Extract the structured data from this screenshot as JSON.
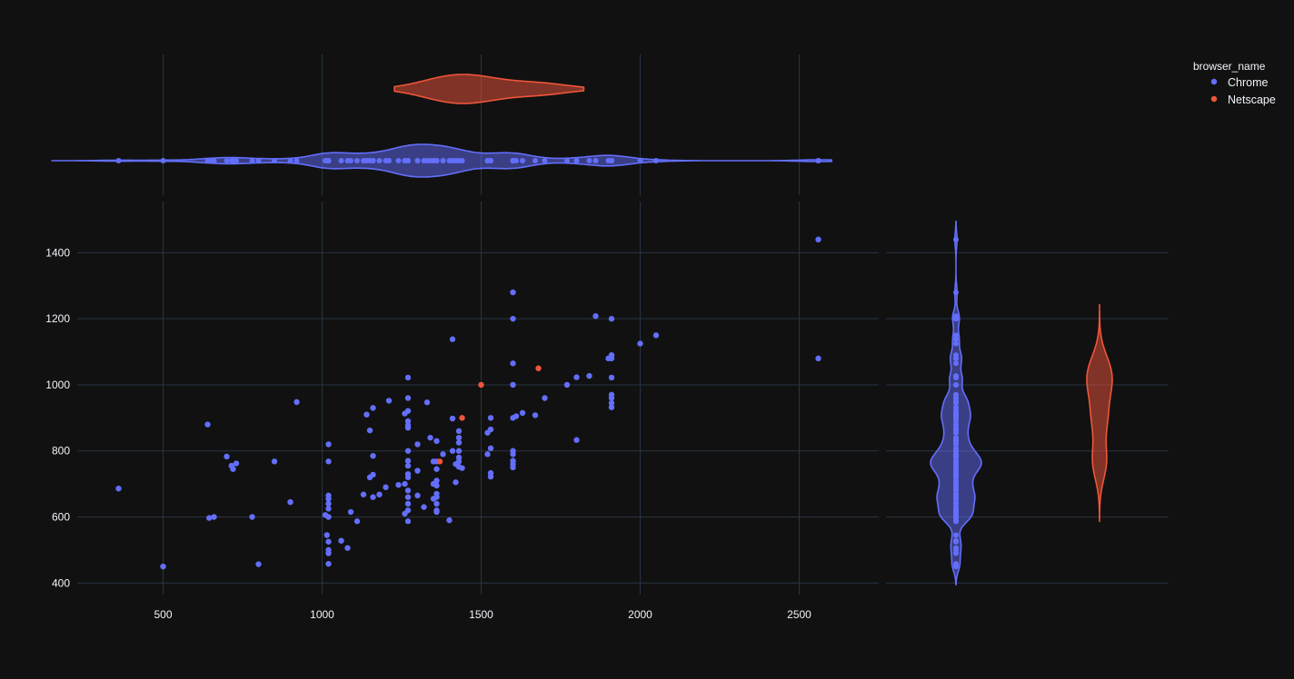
{
  "chart_data": {
    "type": "scatter",
    "legend": {
      "title": "browser_name",
      "placement": "top-right",
      "entries": [
        {
          "name": "Chrome",
          "color": "#636efa"
        },
        {
          "name": "Netscape",
          "color": "#ef553b"
        }
      ]
    },
    "x_axis": {
      "range": [
        230,
        2750
      ],
      "ticks": [
        500,
        1000,
        1500,
        2000,
        2500
      ],
      "grid": true
    },
    "y_axis": {
      "range": [
        365,
        1555
      ],
      "ticks": [
        400,
        600,
        800,
        1000,
        1200,
        1400
      ],
      "grid": true
    },
    "marginals": {
      "x": "violin",
      "y": "violin"
    },
    "series": [
      {
        "name": "Chrome",
        "color": "#636efa",
        "points": [
          [
            360,
            686
          ],
          [
            500,
            450
          ],
          [
            640,
            880
          ],
          [
            645,
            597
          ],
          [
            660,
            600
          ],
          [
            700,
            783
          ],
          [
            715,
            755
          ],
          [
            720,
            745
          ],
          [
            730,
            762
          ],
          [
            780,
            600
          ],
          [
            800,
            457
          ],
          [
            850,
            768
          ],
          [
            900,
            645
          ],
          [
            920,
            948
          ],
          [
            1010,
            606
          ],
          [
            1015,
            545
          ],
          [
            1020,
            820
          ],
          [
            1020,
            768
          ],
          [
            1020,
            665
          ],
          [
            1020,
            655
          ],
          [
            1020,
            640
          ],
          [
            1020,
            625
          ],
          [
            1020,
            600
          ],
          [
            1020,
            525
          ],
          [
            1020,
            500
          ],
          [
            1020,
            490
          ],
          [
            1020,
            458
          ],
          [
            1060,
            528
          ],
          [
            1080,
            506
          ],
          [
            1090,
            615
          ],
          [
            1110,
            587
          ],
          [
            1130,
            668
          ],
          [
            1140,
            910
          ],
          [
            1150,
            862
          ],
          [
            1150,
            720
          ],
          [
            1160,
            930
          ],
          [
            1160,
            785
          ],
          [
            1160,
            728
          ],
          [
            1160,
            660
          ],
          [
            1180,
            668
          ],
          [
            1200,
            690
          ],
          [
            1210,
            952
          ],
          [
            1240,
            697
          ],
          [
            1260,
            913
          ],
          [
            1260,
            700
          ],
          [
            1260,
            610
          ],
          [
            1270,
            1022
          ],
          [
            1270,
            960
          ],
          [
            1270,
            921
          ],
          [
            1270,
            890
          ],
          [
            1270,
            878
          ],
          [
            1270,
            870
          ],
          [
            1270,
            800
          ],
          [
            1270,
            770
          ],
          [
            1270,
            755
          ],
          [
            1270,
            730
          ],
          [
            1270,
            720
          ],
          [
            1270,
            680
          ],
          [
            1270,
            660
          ],
          [
            1270,
            640
          ],
          [
            1270,
            620
          ],
          [
            1270,
            587
          ],
          [
            1300,
            820
          ],
          [
            1300,
            740
          ],
          [
            1300,
            665
          ],
          [
            1320,
            630
          ],
          [
            1330,
            947
          ],
          [
            1340,
            840
          ],
          [
            1350,
            768
          ],
          [
            1350,
            700
          ],
          [
            1350,
            655
          ],
          [
            1360,
            830
          ],
          [
            1360,
            768
          ],
          [
            1360,
            745
          ],
          [
            1360,
            710
          ],
          [
            1360,
            695
          ],
          [
            1360,
            670
          ],
          [
            1360,
            660
          ],
          [
            1360,
            640
          ],
          [
            1360,
            620
          ],
          [
            1360,
            615
          ],
          [
            1380,
            790
          ],
          [
            1400,
            590
          ],
          [
            1410,
            1138
          ],
          [
            1410,
            898
          ],
          [
            1410,
            800
          ],
          [
            1420,
            760
          ],
          [
            1420,
            705
          ],
          [
            1430,
            860
          ],
          [
            1430,
            840
          ],
          [
            1430,
            825
          ],
          [
            1430,
            800
          ],
          [
            1430,
            780
          ],
          [
            1430,
            768
          ],
          [
            1430,
            752
          ],
          [
            1440,
            748
          ],
          [
            1520,
            855
          ],
          [
            1520,
            790
          ],
          [
            1530,
            900
          ],
          [
            1530,
            865
          ],
          [
            1530,
            808
          ],
          [
            1530,
            733
          ],
          [
            1530,
            722
          ],
          [
            1600,
            1280
          ],
          [
            1600,
            1200
          ],
          [
            1600,
            1065
          ],
          [
            1600,
            1000
          ],
          [
            1600,
            900
          ],
          [
            1600,
            800
          ],
          [
            1600,
            790
          ],
          [
            1600,
            770
          ],
          [
            1600,
            760
          ],
          [
            1600,
            750
          ],
          [
            1610,
            905
          ],
          [
            1630,
            915
          ],
          [
            1670,
            908
          ],
          [
            1700,
            960
          ],
          [
            1770,
            1000
          ],
          [
            1800,
            1023
          ],
          [
            1800,
            833
          ],
          [
            1840,
            1027
          ],
          [
            1860,
            1208
          ],
          [
            1900,
            1080
          ],
          [
            1910,
            1200
          ],
          [
            1910,
            1090
          ],
          [
            1910,
            1080
          ],
          [
            1910,
            1022
          ],
          [
            1910,
            970
          ],
          [
            1910,
            960
          ],
          [
            1910,
            945
          ],
          [
            1910,
            932
          ],
          [
            2000,
            1125
          ],
          [
            2050,
            1150
          ],
          [
            2560,
            1440
          ],
          [
            2560,
            1080
          ]
        ]
      },
      {
        "name": "Netscape",
        "color": "#ef553b",
        "points": [
          [
            1370,
            768
          ],
          [
            1440,
            900
          ],
          [
            1500,
            1000
          ],
          [
            1680,
            1050
          ]
        ]
      }
    ]
  }
}
